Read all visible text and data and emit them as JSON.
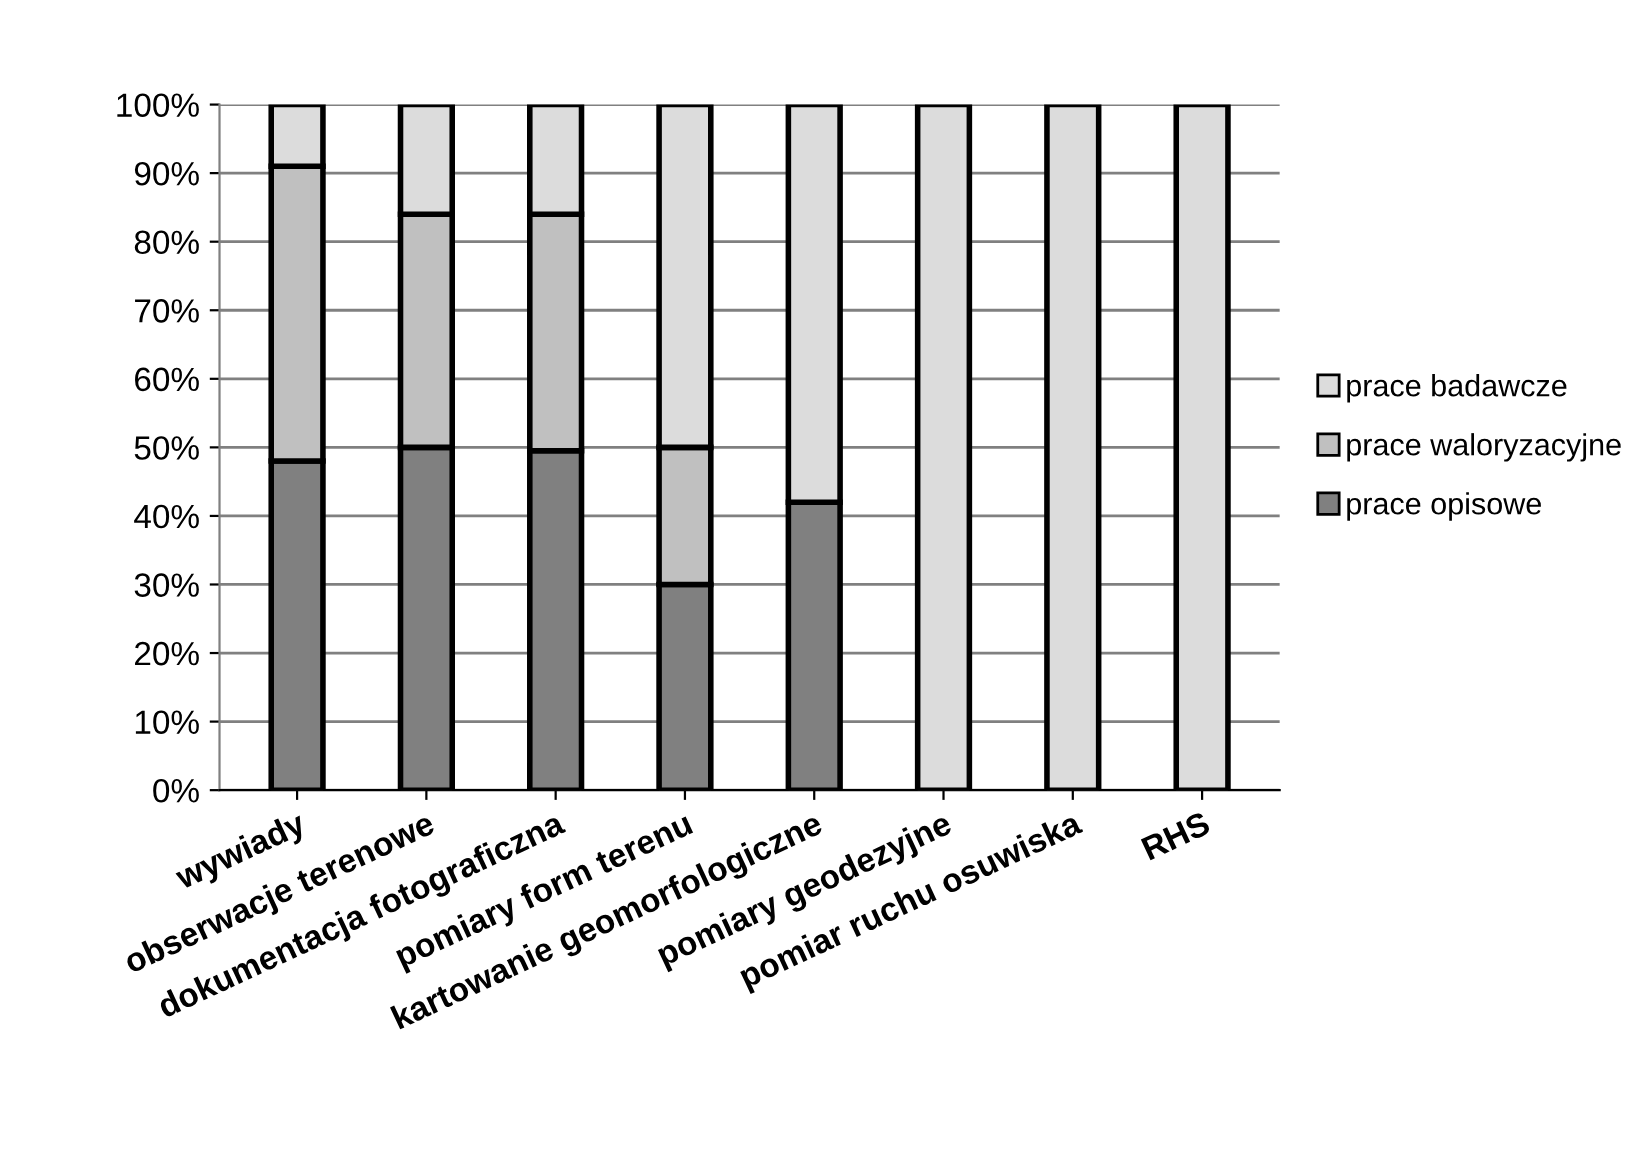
{
  "chart_data": {
    "type": "bar",
    "stacked": true,
    "categories": [
      "wywiady",
      "obserwacje terenowe",
      "dokumentacja fotograficzna",
      "pomiary form terenu",
      "kartowanie geomorfologiczne",
      "pomiary geodezyjne",
      "pomiar ruchu osuwiska",
      "RHS"
    ],
    "series": [
      {
        "name": "prace opisowe",
        "color": "#808080",
        "values": [
          48,
          50,
          49.5,
          30,
          42,
          0,
          0,
          0
        ]
      },
      {
        "name": "prace waloryzacyjne",
        "color": "#c0c0c0",
        "values": [
          43,
          34,
          34.5,
          20,
          0,
          0,
          0,
          0
        ]
      },
      {
        "name": "prace badawcze",
        "color": "#dcdcdc",
        "values": [
          9,
          16,
          16,
          50,
          58,
          100,
          100,
          100
        ]
      }
    ],
    "ylim": [
      0,
      100
    ],
    "yticks": [
      {
        "value": 0,
        "label": "0%"
      },
      {
        "value": 10,
        "label": "10%"
      },
      {
        "value": 20,
        "label": "20%"
      },
      {
        "value": 30,
        "label": "30%"
      },
      {
        "value": 40,
        "label": "40%"
      },
      {
        "value": 50,
        "label": "50%"
      },
      {
        "value": 60,
        "label": "60%"
      },
      {
        "value": 70,
        "label": "70%"
      },
      {
        "value": 80,
        "label": "80%"
      },
      {
        "value": 90,
        "label": "90%"
      },
      {
        "value": 100,
        "label": "100%"
      }
    ],
    "grid": "y",
    "legend": "right"
  }
}
